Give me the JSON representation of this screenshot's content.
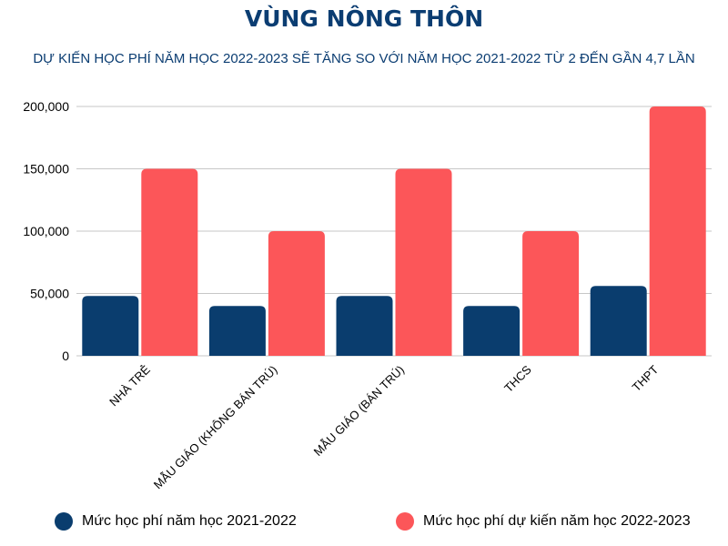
{
  "title": "VÙNG NÔNG THÔN",
  "subtitle": "DỰ KIẾN HỌC PHÍ NĂM HỌC 2022-2023 SẼ TĂNG SO VỚI NĂM HỌC 2021-2022 TỪ 2 ĐẾN GẦN 4,7 LẦN",
  "colors": {
    "series1": "#0a3d6e",
    "series2": "#fc5659"
  },
  "chart_data": {
    "type": "bar",
    "title": "VÙNG NÔNG THÔN",
    "subtitle": "DỰ KIẾN HỌC PHÍ NĂM HỌC 2022-2023 SẼ TĂNG SO VỚI NĂM HỌC 2021-2022 TỪ 2 ĐẾN GẦN 4,7 LẦN",
    "xlabel": "",
    "ylabel": "",
    "categories": [
      "NHÀ TRẺ",
      "MẪU GIÁO (KHÔNG BÁN TRÚ)",
      "MẪU GIÁO (BÁN TRÚ)",
      "THCS",
      "THPT"
    ],
    "series": [
      {
        "name": "Mức học phí năm học 2021-2022",
        "values": [
          48000,
          40000,
          48000,
          40000,
          56000
        ]
      },
      {
        "name": "Mức học phí dự kiến năm học 2022-2023",
        "values": [
          150000,
          100000,
          150000,
          100000,
          200000
        ]
      }
    ],
    "ylim": [
      0,
      200000
    ],
    "yticks": [
      0,
      50000,
      100000,
      150000,
      200000
    ],
    "ytick_labels": [
      "0",
      "50,000",
      "100,000",
      "150,000",
      "200,000"
    ],
    "grid": true,
    "legend_position": "bottom"
  }
}
